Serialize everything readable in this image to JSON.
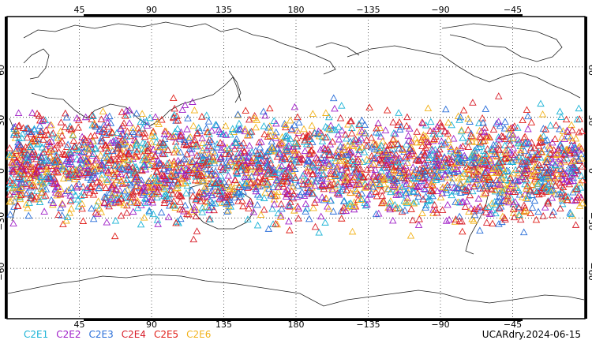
{
  "map": {
    "top_lon_labels": [
      "45",
      "90",
      "135",
      "180",
      "−135",
      "−90",
      "−45"
    ],
    "bottom_lon_labels": [
      "45",
      "90",
      "135",
      "180",
      "−135",
      "−90",
      "−45"
    ],
    "left_lat_labels": [
      "60",
      "30",
      "0",
      "−30",
      "−60"
    ],
    "right_lat_labels": [
      "60",
      "30",
      "0",
      "−30",
      "−60"
    ],
    "grid": "dotted",
    "projection": "cylindrical, 0°–360° longitude"
  },
  "legend": [
    {
      "label": "C2E1",
      "color": "#1bb3d6"
    },
    {
      "label": "C2E2",
      "color": "#a020c8"
    },
    {
      "label": "C2E3",
      "color": "#2a6fd9"
    },
    {
      "label": "C2E4",
      "color": "#d81e2a"
    },
    {
      "label": "C2E5",
      "color": "#e0201a"
    },
    {
      "label": "C2E6",
      "color": "#f2b21a"
    }
  ],
  "stamp": "UCARdry.2024-06-15",
  "observations": {
    "marker": "triangle-icon",
    "lat_range": [
      -45,
      45
    ],
    "lon_range": [
      0,
      360
    ]
  }
}
